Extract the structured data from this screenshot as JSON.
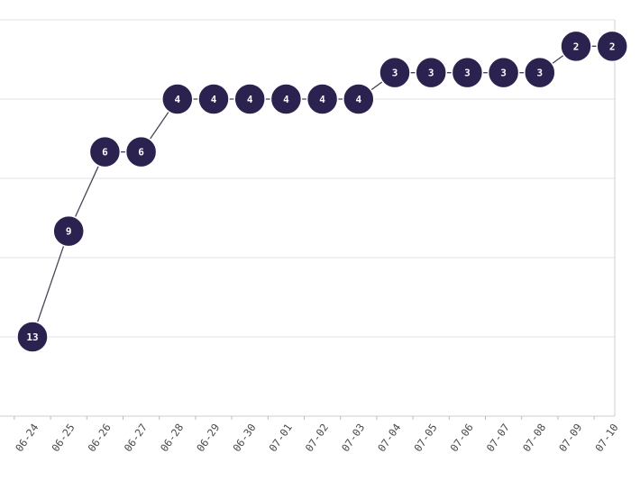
{
  "chart_data": {
    "type": "line",
    "title": "",
    "xlabel": "",
    "ylabel": "",
    "x": [
      "06-24",
      "06-25",
      "06-26",
      "06-27",
      "06-28",
      "06-29",
      "06-30",
      "07-01",
      "07-02",
      "07-03",
      "07-04",
      "07-05",
      "07-06",
      "07-07",
      "07-08",
      "07-09",
      "07-10"
    ],
    "series": [
      {
        "values": [
          13,
          9,
          6,
          6,
          4,
          4,
          4,
          4,
          4,
          4,
          3,
          3,
          3,
          3,
          3,
          2,
          2
        ]
      }
    ],
    "ylim": [
      1,
      16
    ],
    "y_inverted": true,
    "grid": true,
    "point_color": "#2b2250",
    "line_color": "#4a4558"
  }
}
